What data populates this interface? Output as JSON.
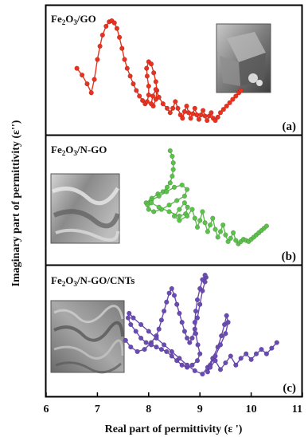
{
  "xlabel": "Real part of permittivity (ε ')",
  "ylabel": "Imaginary part of permittivity (ε'')",
  "x_ticks": [
    "6",
    "7",
    "8",
    "9",
    "10",
    "11"
  ],
  "chart_data": [
    {
      "type": "scatter",
      "panel_tag": "(a)",
      "sample": {
        "base": "Fe",
        "sub1": "2",
        "mid": "O",
        "sub2": "3",
        "rest": "/GO"
      },
      "color": "#e8321f",
      "xlim": [
        6,
        11
      ],
      "ylim": [
        0,
        1
      ],
      "inset": "SEM micrograph",
      "x": [
        6.6,
        6.7,
        6.8,
        6.88,
        6.94,
        7.0,
        7.05,
        7.1,
        7.17,
        7.23,
        7.28,
        7.33,
        7.38,
        7.43,
        7.48,
        7.53,
        7.58,
        7.64,
        7.7,
        7.76,
        7.82,
        7.88,
        7.93,
        7.97,
        8.0,
        8.0,
        7.97,
        7.96,
        8.0,
        8.05,
        8.1,
        8.14,
        8.16,
        8.14,
        8.09,
        8.05,
        8.08,
        8.14,
        8.2,
        8.28,
        8.36,
        8.42,
        8.47,
        8.52,
        8.57,
        8.62,
        8.66,
        8.7,
        8.74,
        8.78,
        8.82,
        8.86,
        8.9,
        8.94,
        8.98,
        9.02,
        9.06,
        9.1,
        9.14,
        9.18,
        9.22,
        9.26,
        9.3,
        9.35,
        9.4,
        9.46,
        9.52,
        9.58,
        9.64,
        9.7,
        9.76,
        9.8
      ],
      "y": [
        0.52,
        0.46,
        0.38,
        0.3,
        0.42,
        0.6,
        0.72,
        0.82,
        0.9,
        0.94,
        0.95,
        0.93,
        0.88,
        0.8,
        0.7,
        0.6,
        0.52,
        0.45,
        0.38,
        0.32,
        0.27,
        0.23,
        0.2,
        0.22,
        0.28,
        0.36,
        0.45,
        0.52,
        0.58,
        0.56,
        0.48,
        0.4,
        0.32,
        0.24,
        0.18,
        0.2,
        0.27,
        0.33,
        0.26,
        0.2,
        0.16,
        0.12,
        0.16,
        0.22,
        0.16,
        0.1,
        0.07,
        0.13,
        0.18,
        0.12,
        0.07,
        0.11,
        0.16,
        0.1,
        0.06,
        0.1,
        0.14,
        0.09,
        0.05,
        0.09,
        0.12,
        0.07,
        0.05,
        0.08,
        0.12,
        0.15,
        0.18,
        0.21,
        0.24,
        0.27,
        0.3,
        0.32
      ]
    },
    {
      "type": "scatter",
      "panel_tag": "(b)",
      "sample": {
        "base": "Fe",
        "sub1": "2",
        "mid": "O",
        "sub2": "3",
        "rest": "/N-GO"
      },
      "color": "#5bc14a",
      "xlim": [
        6,
        11
      ],
      "ylim": [
        0,
        1
      ],
      "inset": "SEM micrograph",
      "x": [
        8.42,
        8.46,
        8.48,
        8.48,
        8.46,
        8.42,
        8.36,
        8.28,
        8.18,
        8.06,
        7.95,
        8.05,
        8.2,
        8.35,
        8.5,
        8.65,
        8.75,
        8.7,
        8.55,
        8.4,
        8.25,
        8.1,
        8.0,
        7.98,
        8.05,
        8.2,
        8.4,
        8.6,
        8.72,
        8.76,
        8.7,
        8.6,
        8.5,
        8.6,
        8.75,
        8.85,
        8.9,
        8.95,
        9.0,
        9.05,
        9.1,
        9.15,
        9.2,
        9.25,
        9.3,
        9.35,
        9.4,
        9.45,
        9.5,
        9.55,
        9.6,
        9.65,
        9.7,
        9.75,
        9.8,
        9.85,
        9.9,
        9.95,
        10.0,
        10.05,
        10.1,
        10.15,
        10.2,
        10.25,
        10.3
      ],
      "y": [
        0.95,
        0.9,
        0.84,
        0.78,
        0.72,
        0.66,
        0.62,
        0.58,
        0.56,
        0.52,
        0.48,
        0.5,
        0.54,
        0.58,
        0.62,
        0.64,
        0.6,
        0.54,
        0.5,
        0.46,
        0.42,
        0.4,
        0.42,
        0.46,
        0.48,
        0.44,
        0.4,
        0.36,
        0.38,
        0.44,
        0.48,
        0.42,
        0.36,
        0.32,
        0.36,
        0.42,
        0.34,
        0.26,
        0.32,
        0.4,
        0.3,
        0.22,
        0.28,
        0.34,
        0.24,
        0.17,
        0.22,
        0.28,
        0.19,
        0.13,
        0.16,
        0.21,
        0.14,
        0.11,
        0.13,
        0.15,
        0.14,
        0.13,
        0.15,
        0.17,
        0.19,
        0.21,
        0.23,
        0.25,
        0.27
      ]
    },
    {
      "type": "scatter",
      "panel_tag": "(c)",
      "sample": {
        "base": "Fe",
        "sub1": "2",
        "mid": "O",
        "sub2": "3",
        "rest": "/N-GO/CNTs"
      },
      "color": "#6a4bb3",
      "xlim": [
        6,
        11
      ],
      "ylim": [
        0,
        1
      ],
      "inset": "SEM micrograph",
      "x": [
        7.55,
        7.65,
        7.78,
        7.92,
        8.05,
        8.15,
        8.2,
        8.25,
        8.3,
        8.35,
        8.4,
        8.45,
        8.5,
        8.55,
        8.6,
        8.65,
        8.7,
        8.75,
        8.8,
        8.85,
        8.9,
        8.95,
        9.0,
        9.05,
        9.1,
        9.12,
        9.1,
        9.05,
        9.0,
        8.95,
        8.92,
        8.9,
        8.92,
        8.96,
        9.0,
        8.95,
        8.85,
        8.75,
        8.65,
        8.55,
        8.45,
        8.35,
        8.25,
        8.15,
        8.05,
        7.95,
        7.85,
        7.75,
        7.65,
        7.6,
        7.62,
        7.7,
        7.85,
        8.0,
        8.15,
        8.3,
        8.45,
        8.6,
        8.75,
        8.9,
        9.05,
        9.15,
        9.25,
        9.35,
        9.42,
        9.48,
        9.52,
        9.55,
        9.5,
        9.4,
        9.3,
        9.2,
        9.15,
        9.2,
        9.3,
        9.4,
        9.5,
        9.6,
        9.7,
        9.8,
        9.9,
        10.0,
        10.1,
        10.2,
        10.3,
        10.4,
        10.5
      ],
      "y": [
        0.42,
        0.36,
        0.32,
        0.34,
        0.4,
        0.46,
        0.52,
        0.6,
        0.68,
        0.76,
        0.84,
        0.88,
        0.82,
        0.74,
        0.66,
        0.58,
        0.5,
        0.44,
        0.4,
        0.44,
        0.52,
        0.62,
        0.74,
        0.86,
        0.94,
        0.98,
        1.0,
        0.96,
        0.88,
        0.78,
        0.68,
        0.58,
        0.48,
        0.38,
        0.3,
        0.24,
        0.2,
        0.18,
        0.2,
        0.24,
        0.28,
        0.32,
        0.34,
        0.36,
        0.38,
        0.4,
        0.44,
        0.5,
        0.56,
        0.62,
        0.66,
        0.62,
        0.56,
        0.5,
        0.44,
        0.38,
        0.32,
        0.26,
        0.2,
        0.15,
        0.12,
        0.18,
        0.26,
        0.36,
        0.46,
        0.56,
        0.64,
        0.58,
        0.48,
        0.38,
        0.28,
        0.2,
        0.14,
        0.18,
        0.24,
        0.16,
        0.22,
        0.28,
        0.2,
        0.26,
        0.3,
        0.25,
        0.3,
        0.34,
        0.3,
        0.35,
        0.4
      ]
    }
  ]
}
